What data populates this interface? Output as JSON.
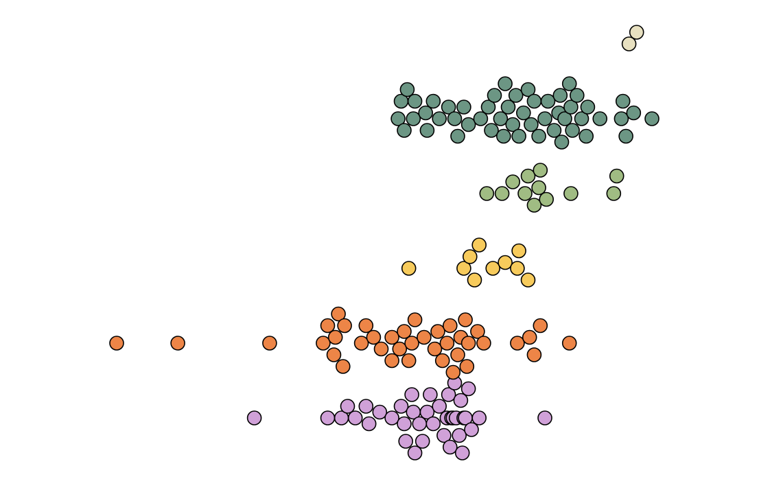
{
  "chart_data": {
    "type": "scatter",
    "subtype": "beeswarm",
    "title": "",
    "xlabel": "",
    "ylabel": "",
    "grid": false,
    "axes_visible": false,
    "legend": "none",
    "series": [
      {
        "color": "#d0a1d8",
        "values": [
          172,
          220,
          229,
          233,
          238,
          245,
          247,
          254,
          262,
          268,
          270,
          271,
          275,
          276,
          277,
          280,
          282,
          285,
          287,
          289,
          293,
          296,
          298,
          299,
          300,
          301,
          302,
          303,
          304,
          306,
          307,
          308,
          309,
          310,
          312,
          314,
          319,
          362
        ]
      },
      {
        "color": "#ed8547",
        "values": [
          82,
          122,
          182,
          217,
          220,
          224,
          225,
          227,
          230,
          231,
          242,
          245,
          250,
          255,
          262,
          262,
          267,
          270,
          273,
          275,
          277,
          283,
          290,
          292,
          295,
          298,
          300,
          302,
          305,
          307,
          310,
          311,
          312,
          318,
          322,
          344,
          352,
          355,
          359,
          378
        ]
      },
      {
        "color": "#f7cb5c",
        "values": [
          273,
          309,
          313,
          316,
          319,
          328,
          336,
          344,
          345,
          351
        ]
      },
      {
        "color": "#a0bc83",
        "values": [
          324,
          334,
          341,
          349,
          351,
          355,
          358,
          359,
          363,
          379,
          407,
          409
        ]
      },
      {
        "color": "#6c9684",
        "values": [
          266,
          268,
          270,
          272,
          276,
          277,
          284,
          285,
          289,
          293,
          299,
          303,
          305,
          309,
          312,
          320,
          325,
          327,
          329,
          333,
          335,
          336,
          338,
          341,
          343,
          345,
          348,
          351,
          353,
          355,
          358,
          362,
          364,
          368,
          371,
          372,
          373,
          375,
          378,
          379,
          380,
          383,
          386,
          389,
          390,
          398,
          412,
          413,
          415,
          420,
          432
        ]
      },
      {
        "color": "#e8e1c1",
        "values": [
          417,
          422
        ]
      }
    ]
  }
}
